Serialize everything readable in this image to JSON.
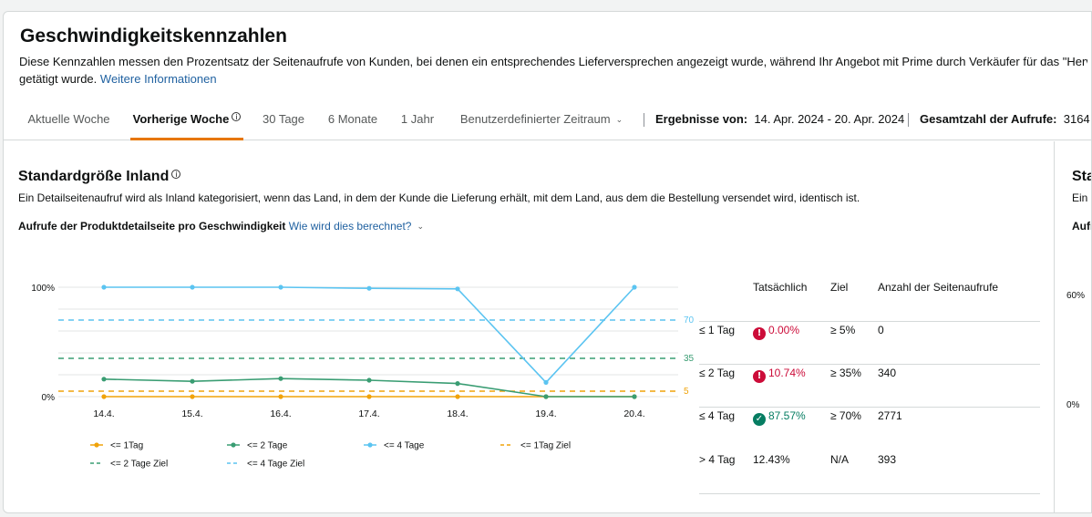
{
  "header": {
    "title": "Geschwindigkeitskennzahlen",
    "description_line1": "Diese Kennzahlen messen den Prozentsatz der Seitenaufrufe von Kunden, bei denen ein entsprechendes Lieferversprechen angezeigt wurde, während Ihr Angebot mit Prime durch Verkäufer für das \"Hervorgehobenes Angebot\"",
    "description_line2": "getätigt wurde.",
    "more_info_link": "Weitere Informationen"
  },
  "tabs": [
    {
      "label": "Aktuelle Woche"
    },
    {
      "label": "Vorherige Woche",
      "active": true
    },
    {
      "label": "30 Tage"
    },
    {
      "label": "6 Monate"
    },
    {
      "label": "1 Jahr"
    },
    {
      "label": "Benutzerdefinierter Zeitraum"
    }
  ],
  "results": {
    "range_label": "Ergebnisse von:",
    "range_value": "14. Apr. 2024 - 20. Apr. 2024",
    "total_label": "Gesamtzahl der Aufrufe:",
    "total_value": "3164"
  },
  "section": {
    "title": "Standardgröße Inland",
    "description": "Ein Detailseitenaufruf wird als Inland kategorisiert, wenn das Land, in dem der Kunde die Lieferung erhält, mit dem Land, aus dem die Bestellung versendet wird, identisch ist.",
    "subtitle": "Aufrufe der Produktdetailseite pro Geschwindigkeit",
    "how_link": "Wie wird dies berechnet?"
  },
  "chart_data": {
    "type": "line",
    "categories": [
      "14.4.",
      "15.4.",
      "16.4.",
      "17.4.",
      "18.4.",
      "19.4.",
      "20.4."
    ],
    "y_tick_labels": [
      "100%",
      "0%"
    ],
    "ylim": [
      0,
      100
    ],
    "series": [
      {
        "name": "<= 1Tag",
        "color": "#f0a30a",
        "values": [
          0,
          0,
          0,
          0,
          0,
          0,
          0
        ]
      },
      {
        "name": "<= 2 Tage",
        "color": "#3a9d73",
        "values": [
          16,
          14,
          16.5,
          15,
          12,
          0,
          0
        ]
      },
      {
        "name": "<= 4 Tage",
        "color": "#5bc4f1",
        "values": [
          100,
          100,
          100,
          99,
          98.5,
          13,
          100
        ]
      }
    ],
    "targets": [
      {
        "name": "<= 1Tag Ziel",
        "color": "#f0a30a",
        "value": 5,
        "label": "5"
      },
      {
        "name": "<= 2 Tage Ziel",
        "color": "#3a9d73",
        "value": 35,
        "label": "35"
      },
      {
        "name": "<= 4 Tage Ziel",
        "color": "#5bc4f1",
        "value": 70,
        "label": "70"
      }
    ],
    "legend_position": "bottom"
  },
  "table": {
    "headers": {
      "actual": "Tatsächlich",
      "target": "Ziel",
      "views": "Anzahl der Seitenaufrufe"
    },
    "rows": [
      {
        "label": "≤ 1 Tag",
        "status": "error",
        "actual": "0.00%",
        "target": "≥ 5%",
        "views": "0"
      },
      {
        "label": "≤ 2 Tag",
        "status": "error",
        "actual": "10.74%",
        "target": "≥ 35%",
        "views": "340"
      },
      {
        "label": "≤ 4 Tag",
        "status": "ok",
        "actual": "87.57%",
        "target": "≥ 70%",
        "views": "2771"
      },
      {
        "label": "> 4 Tag",
        "status": "none",
        "actual": "12.43%",
        "target": "N/A",
        "views": "393"
      }
    ]
  },
  "panel2": {
    "title": "Sta",
    "desc": "Ein I",
    "sub": "Aufr",
    "tick_top": "60%",
    "tick_bottom": "0%"
  }
}
